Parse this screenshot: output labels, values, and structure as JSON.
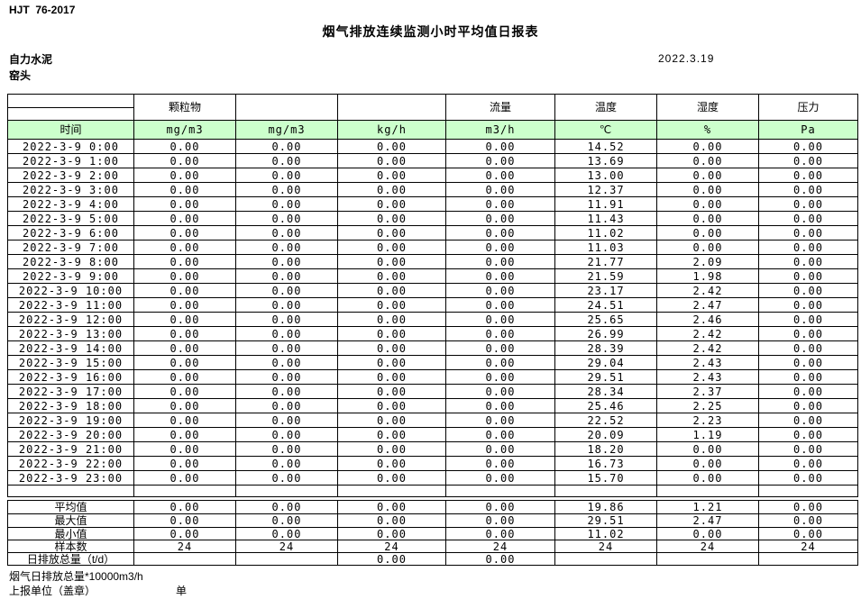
{
  "page": {
    "doc_code": "HJT  76-2017",
    "title": "烟气排放连续监测小时平均值日报表",
    "company": "自力水泥",
    "station": "窑头",
    "date": "2022.3.19"
  },
  "table": {
    "group_headers": [
      "",
      "颗粒物",
      "",
      "",
      "流量",
      "温度",
      "湿度",
      "压力"
    ],
    "unit_row": [
      "时间",
      "mg/m3",
      "mg/m3",
      "kg/h",
      "m3/h",
      "℃",
      "%",
      "Pa"
    ],
    "rows": [
      [
        "2022-3-9 0:00",
        "0.00",
        "0.00",
        "0.00",
        "0.00",
        "14.52",
        "0.00",
        "0.00"
      ],
      [
        "2022-3-9 1:00",
        "0.00",
        "0.00",
        "0.00",
        "0.00",
        "13.69",
        "0.00",
        "0.00"
      ],
      [
        "2022-3-9 2:00",
        "0.00",
        "0.00",
        "0.00",
        "0.00",
        "13.00",
        "0.00",
        "0.00"
      ],
      [
        "2022-3-9 3:00",
        "0.00",
        "0.00",
        "0.00",
        "0.00",
        "12.37",
        "0.00",
        "0.00"
      ],
      [
        "2022-3-9 4:00",
        "0.00",
        "0.00",
        "0.00",
        "0.00",
        "11.91",
        "0.00",
        "0.00"
      ],
      [
        "2022-3-9 5:00",
        "0.00",
        "0.00",
        "0.00",
        "0.00",
        "11.43",
        "0.00",
        "0.00"
      ],
      [
        "2022-3-9 6:00",
        "0.00",
        "0.00",
        "0.00",
        "0.00",
        "11.02",
        "0.00",
        "0.00"
      ],
      [
        "2022-3-9 7:00",
        "0.00",
        "0.00",
        "0.00",
        "0.00",
        "11.03",
        "0.00",
        "0.00"
      ],
      [
        "2022-3-9 8:00",
        "0.00",
        "0.00",
        "0.00",
        "0.00",
        "21.77",
        "2.09",
        "0.00"
      ],
      [
        "2022-3-9 9:00",
        "0.00",
        "0.00",
        "0.00",
        "0.00",
        "21.59",
        "1.98",
        "0.00"
      ],
      [
        "2022-3-9 10:00",
        "0.00",
        "0.00",
        "0.00",
        "0.00",
        "23.17",
        "2.42",
        "0.00"
      ],
      [
        "2022-3-9 11:00",
        "0.00",
        "0.00",
        "0.00",
        "0.00",
        "24.51",
        "2.47",
        "0.00"
      ],
      [
        "2022-3-9 12:00",
        "0.00",
        "0.00",
        "0.00",
        "0.00",
        "25.65",
        "2.46",
        "0.00"
      ],
      [
        "2022-3-9 13:00",
        "0.00",
        "0.00",
        "0.00",
        "0.00",
        "26.99",
        "2.42",
        "0.00"
      ],
      [
        "2022-3-9 14:00",
        "0.00",
        "0.00",
        "0.00",
        "0.00",
        "28.39",
        "2.42",
        "0.00"
      ],
      [
        "2022-3-9 15:00",
        "0.00",
        "0.00",
        "0.00",
        "0.00",
        "29.04",
        "2.43",
        "0.00"
      ],
      [
        "2022-3-9 16:00",
        "0.00",
        "0.00",
        "0.00",
        "0.00",
        "29.51",
        "2.43",
        "0.00"
      ],
      [
        "2022-3-9 17:00",
        "0.00",
        "0.00",
        "0.00",
        "0.00",
        "28.34",
        "2.37",
        "0.00"
      ],
      [
        "2022-3-9 18:00",
        "0.00",
        "0.00",
        "0.00",
        "0.00",
        "25.46",
        "2.25",
        "0.00"
      ],
      [
        "2022-3-9 19:00",
        "0.00",
        "0.00",
        "0.00",
        "0.00",
        "22.52",
        "2.23",
        "0.00"
      ],
      [
        "2022-3-9 20:00",
        "0.00",
        "0.00",
        "0.00",
        "0.00",
        "20.09",
        "1.19",
        "0.00"
      ],
      [
        "2022-3-9 21:00",
        "0.00",
        "0.00",
        "0.00",
        "0.00",
        "18.20",
        "0.00",
        "0.00"
      ],
      [
        "2022-3-9 22:00",
        "0.00",
        "0.00",
        "0.00",
        "0.00",
        "16.73",
        "0.00",
        "0.00"
      ],
      [
        "2022-3-9 23:00",
        "0.00",
        "0.00",
        "0.00",
        "0.00",
        "15.70",
        "0.00",
        "0.00"
      ]
    ],
    "summary": [
      {
        "label": "平均值",
        "values": [
          "0.00",
          "0.00",
          "0.00",
          "0.00",
          "19.86",
          "1.21",
          "0.00"
        ]
      },
      {
        "label": "最大值",
        "values": [
          "0.00",
          "0.00",
          "0.00",
          "0.00",
          "29.51",
          "2.47",
          "0.00"
        ]
      },
      {
        "label": "最小值",
        "values": [
          "0.00",
          "0.00",
          "0.00",
          "0.00",
          "11.02",
          "0.00",
          "0.00"
        ]
      },
      {
        "label": "样本数",
        "values": [
          "24",
          "24",
          "24",
          "24",
          "24",
          "24",
          "24"
        ]
      },
      {
        "label": "日排放总量（t/d）",
        "values": [
          "",
          "",
          "0.00",
          "0.00",
          "",
          "",
          ""
        ]
      }
    ]
  },
  "footer": {
    "note": "烟气日排放总量*10000m3/h",
    "report_unit_label": "上报单位（盖章）",
    "unit_label": "单位"
  }
}
